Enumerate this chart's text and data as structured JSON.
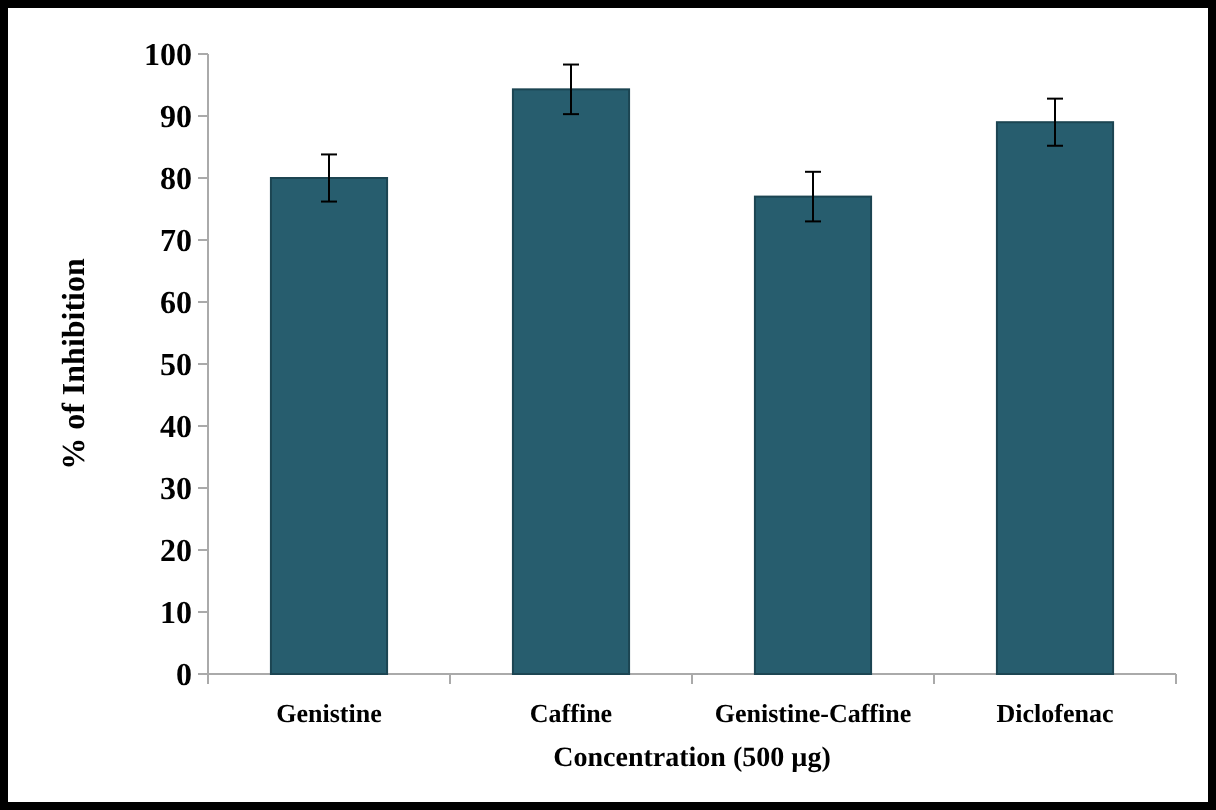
{
  "chart_data": {
    "type": "bar",
    "xlabel": "Concentration (500 µg)",
    "ylabel": "% of Inhibition",
    "categories": [
      "Genistine",
      "Caffine",
      "Genistine-Caffine",
      "Diclofenac"
    ],
    "values": [
      80,
      94.3,
      77,
      89
    ],
    "errors": [
      3.8,
      4,
      4,
      3.8
    ],
    "color": "#275d6e",
    "ylim": [
      0,
      100
    ],
    "yticks": [
      0,
      10,
      20,
      30,
      40,
      50,
      60,
      70,
      80,
      90,
      100
    ],
    "grid": false
  }
}
